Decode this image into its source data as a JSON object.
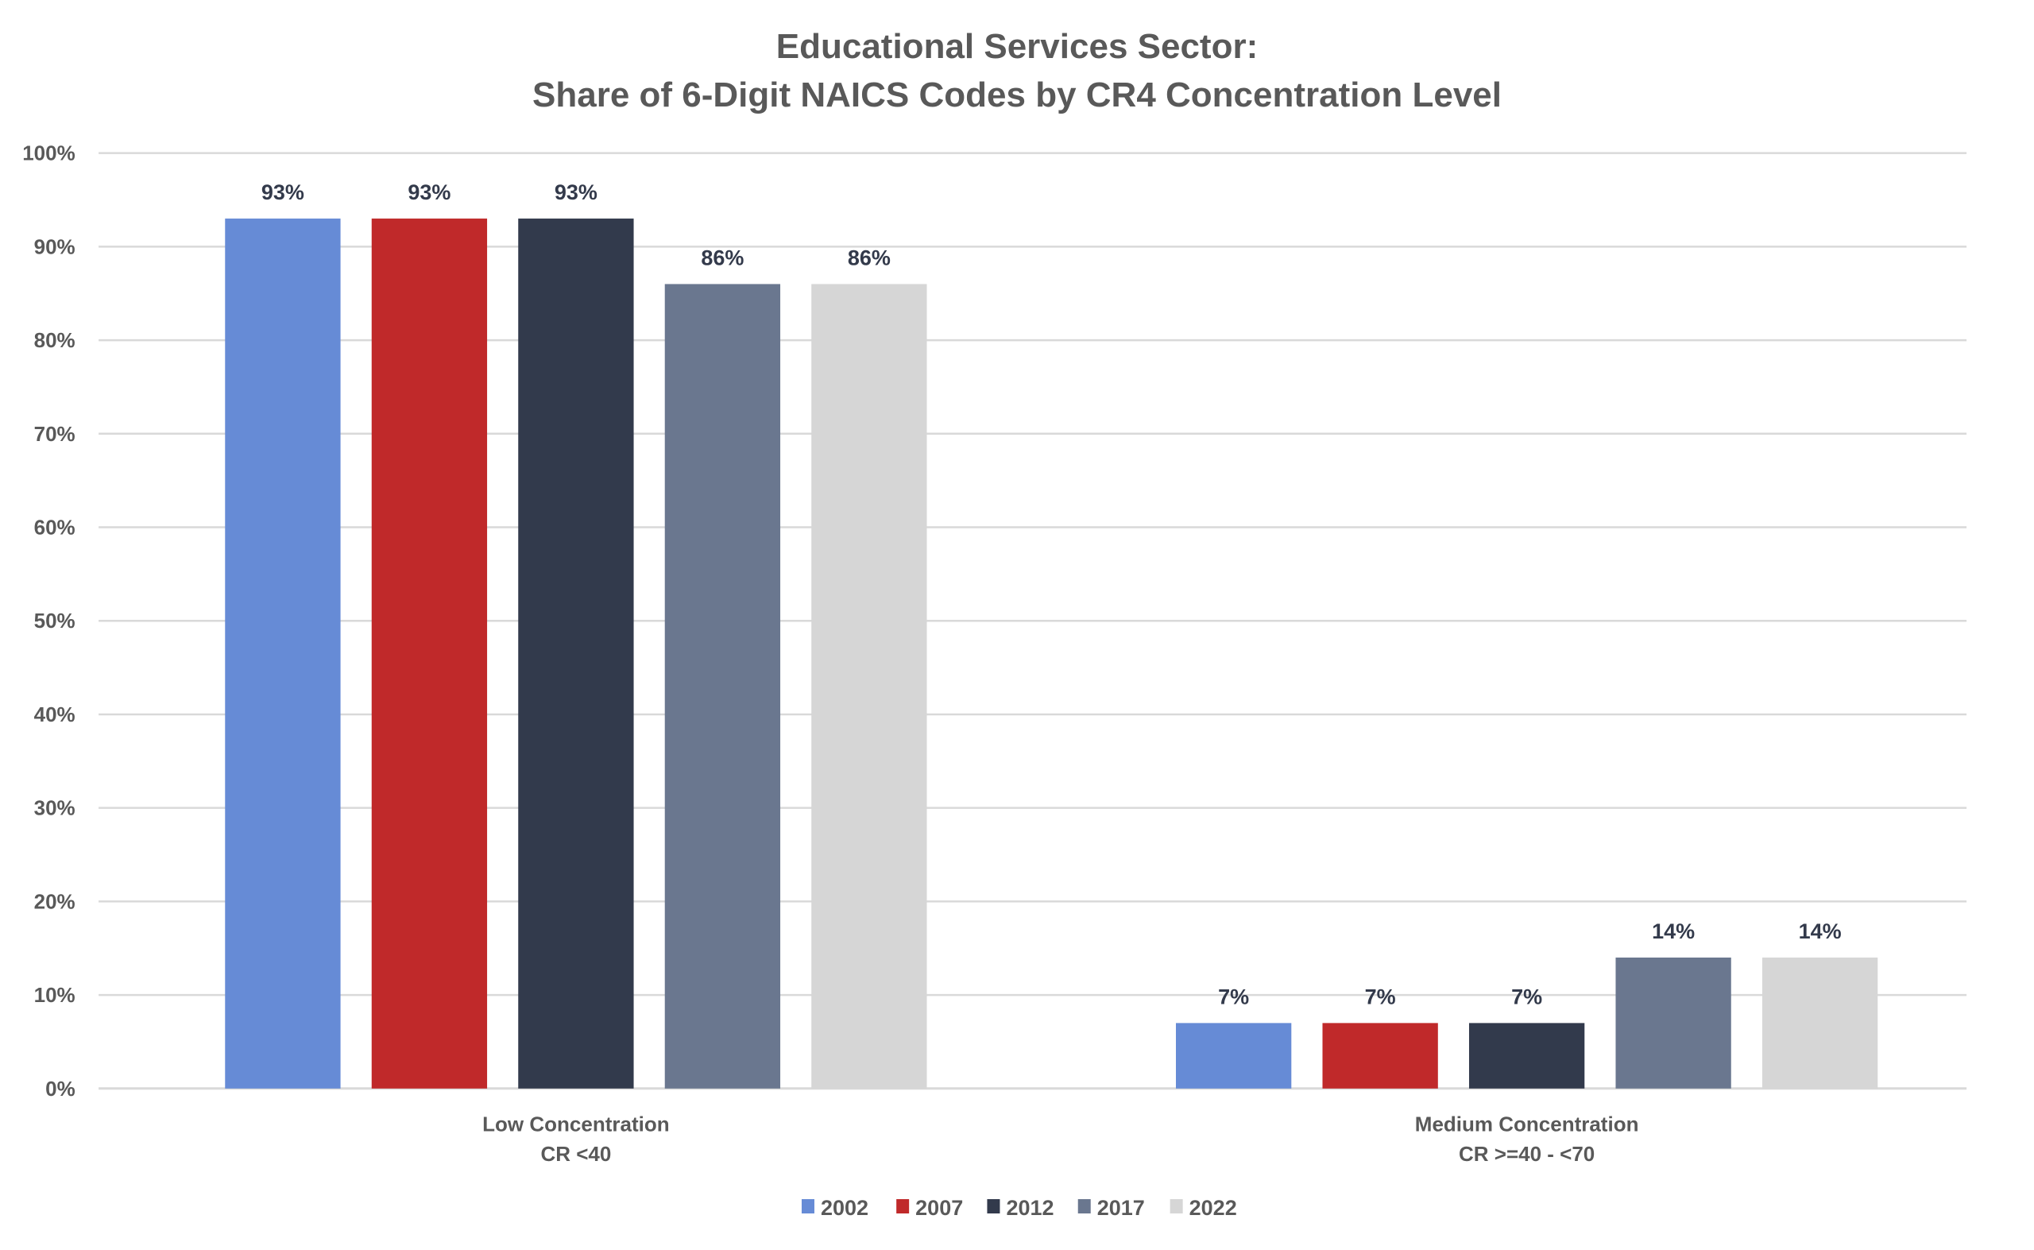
{
  "chart_data": {
    "type": "bar",
    "title": "Educational Services Sector:",
    "subtitle": "Share of 6-Digit NAICS Codes by CR4 Concentration Level",
    "xlabel": "",
    "ylabel": "",
    "ylim": [
      0,
      100
    ],
    "yticks": [
      0,
      10,
      20,
      30,
      40,
      50,
      60,
      70,
      80,
      90,
      100
    ],
    "ytick_labels": [
      "0%",
      "10%",
      "20%",
      "30%",
      "40%",
      "50%",
      "60%",
      "70%",
      "80%",
      "90%",
      "100%"
    ],
    "grid": true,
    "legend_position": "bottom",
    "categories": [
      {
        "line1": "Low Concentration",
        "line2": "CR <40"
      },
      {
        "line1": "Medium Concentration",
        "line2": "CR >=40 - <70"
      }
    ],
    "series": [
      {
        "name": "2002",
        "color": "#668bd6",
        "values": [
          93,
          7
        ],
        "labels": [
          "93%",
          "7%"
        ]
      },
      {
        "name": "2007",
        "color": "#c0292a",
        "values": [
          93,
          7
        ],
        "labels": [
          "93%",
          "7%"
        ]
      },
      {
        "name": "2012",
        "color": "#323a4c",
        "values": [
          93,
          7
        ],
        "labels": [
          "93%",
          "7%"
        ]
      },
      {
        "name": "2017",
        "color": "#6a778f",
        "values": [
          86,
          14
        ],
        "labels": [
          "86%",
          "14%"
        ]
      },
      {
        "name": "2022",
        "color": "#d6d6d6",
        "values": [
          86,
          14
        ],
        "labels": [
          "86%",
          "14%"
        ]
      }
    ]
  }
}
